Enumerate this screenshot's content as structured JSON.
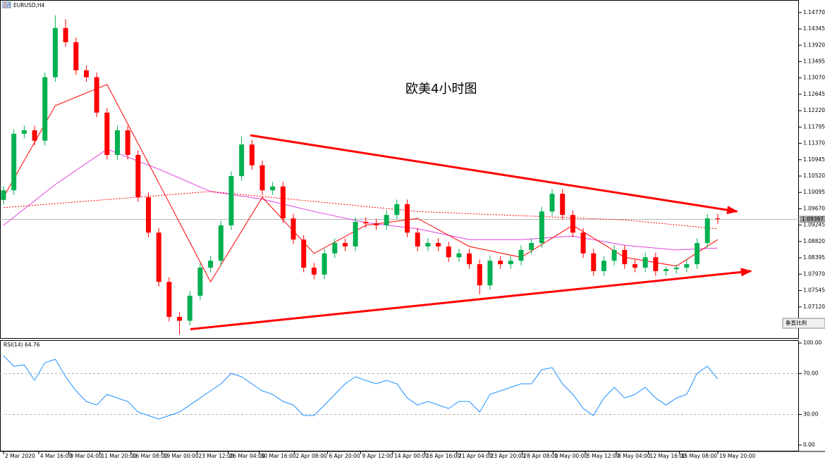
{
  "chart_data": [
    {
      "type": "candlestick",
      "title": "EURUSD,H4",
      "annotation": "欧美4小时图",
      "x": [
        0,
        1,
        2,
        3,
        4,
        5,
        6,
        7,
        8,
        9,
        10,
        11,
        12,
        13,
        14,
        15,
        16,
        17,
        18,
        19,
        20,
        21,
        22,
        23,
        24,
        25,
        26,
        27,
        28,
        29,
        30,
        31,
        32,
        33,
        34,
        35,
        36,
        37,
        38,
        39,
        40,
        41,
        42,
        43,
        44,
        45,
        46,
        47,
        48,
        49,
        50,
        51,
        52,
        53,
        54,
        55,
        56,
        57,
        58,
        59,
        60,
        61,
        62,
        63,
        64,
        65,
        66,
        67,
        68,
        69
      ],
      "open": [
        1.099,
        1.1015,
        1.1162,
        1.1171,
        1.1144,
        1.1309,
        1.1437,
        1.14,
        1.1327,
        1.1309,
        1.1217,
        1.1107,
        1.1171,
        1.1107,
        1.0997,
        1.0905,
        1.0777,
        1.0686,
        1.0676,
        1.0741,
        1.0814,
        1.0832,
        1.0924,
        1.1052,
        1.1134,
        1.108,
        1.1015,
        1.1025,
        1.0942,
        1.0887,
        1.0814,
        1.0796,
        1.0851,
        1.0878,
        1.0869,
        1.0933,
        1.0929,
        1.0924,
        1.0951,
        1.0979,
        1.0905,
        1.0869,
        1.0878,
        1.0869,
        1.0841,
        1.0851,
        1.0823,
        1.0768,
        1.0832,
        1.0823,
        1.0832,
        1.086,
        1.0878,
        1.096,
        1.1006,
        1.0951,
        1.0905,
        1.0851,
        1.0805,
        1.0832,
        1.086,
        1.0823,
        1.0814,
        1.0841,
        1.0805,
        1.081,
        1.0814,
        1.0823,
        1.0878,
        1.0942
      ],
      "high": [
        1.1027,
        1.1174,
        1.1183,
        1.1183,
        1.1321,
        1.147,
        1.146,
        1.1412,
        1.1339,
        1.1321,
        1.1229,
        1.1183,
        1.1183,
        1.1119,
        1.1009,
        1.0917,
        1.0789,
        1.0698,
        1.0753,
        1.0826,
        1.0844,
        1.0936,
        1.1064,
        1.1155,
        1.1146,
        1.1092,
        1.1037,
        1.1037,
        1.0954,
        1.0899,
        1.0826,
        1.0863,
        1.089,
        1.089,
        1.0945,
        1.0945,
        1.0941,
        1.0963,
        1.0991,
        1.0991,
        1.0917,
        1.089,
        1.089,
        1.0881,
        1.0863,
        1.0863,
        1.0835,
        1.0844,
        1.0844,
        1.0844,
        1.0872,
        1.089,
        1.0972,
        1.1018,
        1.1018,
        1.0963,
        1.0917,
        1.0863,
        1.0844,
        1.0872,
        1.0872,
        1.0835,
        1.0853,
        1.0853,
        1.0817,
        1.0822,
        1.0835,
        1.089,
        1.0954,
        1.0954
      ],
      "low": [
        1.0978,
        1.1003,
        1.115,
        1.1132,
        1.1132,
        1.1297,
        1.1388,
        1.1315,
        1.1297,
        1.1205,
        1.1095,
        1.1095,
        1.1095,
        1.0985,
        1.0893,
        1.0765,
        1.0674,
        1.064,
        1.0664,
        1.0729,
        1.0802,
        1.082,
        1.0912,
        1.104,
        1.1068,
        1.1003,
        1.1003,
        1.093,
        1.0875,
        1.0802,
        1.0784,
        1.0784,
        1.0839,
        1.0857,
        1.0857,
        1.0917,
        1.0912,
        1.0912,
        1.0939,
        1.0893,
        1.0857,
        1.0857,
        1.0857,
        1.0829,
        1.0829,
        1.0811,
        1.0745,
        1.0756,
        1.0811,
        1.0811,
        1.082,
        1.0848,
        1.0866,
        1.0948,
        1.0939,
        1.0893,
        1.0839,
        1.0793,
        1.0793,
        1.082,
        1.0811,
        1.0802,
        1.0802,
        1.0793,
        1.0793,
        1.0798,
        1.0802,
        1.0811,
        1.0866,
        1.0928
      ],
      "close": [
        1.1015,
        1.1162,
        1.1171,
        1.1144,
        1.1309,
        1.1437,
        1.14,
        1.1327,
        1.1309,
        1.1217,
        1.1107,
        1.1171,
        1.1107,
        1.0997,
        1.0905,
        1.0777,
        1.0686,
        1.0676,
        1.0741,
        1.0814,
        1.0832,
        1.0924,
        1.1052,
        1.1134,
        1.108,
        1.1015,
        1.1025,
        1.0942,
        1.0887,
        1.0814,
        1.0796,
        1.0851,
        1.0878,
        1.0869,
        1.0933,
        1.0929,
        1.0924,
        1.0951,
        1.0979,
        1.0905,
        1.0869,
        1.0878,
        1.0869,
        1.0841,
        1.0851,
        1.0823,
        1.0768,
        1.0832,
        1.0823,
        1.0832,
        1.086,
        1.0878,
        1.096,
        1.1006,
        1.0951,
        1.0905,
        1.0851,
        1.0805,
        1.0832,
        1.086,
        1.0823,
        1.0814,
        1.0841,
        1.0805,
        1.081,
        1.0814,
        1.0823,
        1.0878,
        1.0942,
        1.094
      ],
      "up_color": "#00b050",
      "down_color": "#ff0000",
      "overlays": [
        {
          "color": "#e040e0",
          "style": "solid",
          "x": [
            0,
            5,
            10,
            15,
            20,
            25,
            30,
            35,
            40,
            45,
            50,
            55,
            60,
            65,
            69
          ],
          "values": [
            1.0924,
            1.103,
            1.1122,
            1.107,
            1.1012,
            1.0992,
            1.096,
            1.0931,
            1.0915,
            1.0887,
            1.0887,
            1.0896,
            1.0872,
            1.086,
            1.0865
          ]
        },
        {
          "color": "#ff0000",
          "style": "solid",
          "x": [
            0,
            5,
            10,
            15,
            20,
            25,
            30,
            35,
            40,
            45,
            50,
            55,
            60,
            65,
            69
          ],
          "values": [
            1.0997,
            1.1235,
            1.129,
            1.1034,
            1.0777,
            1.0997,
            1.0851,
            1.0924,
            1.0942,
            1.0869,
            1.0841,
            1.0924,
            1.0841,
            1.0818,
            1.0887
          ]
        },
        {
          "color": "#ff0000",
          "style": "dotted",
          "x": [
            0,
            20,
            40,
            60,
            69
          ],
          "values": [
            1.097,
            1.1012,
            1.096,
            1.0938,
            1.0915
          ]
        }
      ],
      "trendlines": [
        {
          "color": "#ff0000",
          "x": [
            23.84,
            70.85
          ],
          "values": [
            1.1158,
            1.096
          ]
        },
        {
          "color": "#ff0000",
          "x": [
            18.05,
            72.2
          ],
          "values": [
            1.0654,
            1.0805
          ]
        }
      ],
      "last_price": {
        "value": 1.09397,
        "label": "1.09397"
      },
      "xlim": [
        -0.34,
        76.84
      ],
      "ylim": [
        1.0631,
        1.1506
      ],
      "yticks": [
        {
          "value": 1.1477,
          "label": "1.14770"
        },
        {
          "value": 1.14345,
          "label": "1.14345"
        },
        {
          "value": 1.1392,
          "label": "1.13920"
        },
        {
          "value": 1.13495,
          "label": "1.13495"
        },
        {
          "value": 1.1307,
          "label": "1.13070"
        },
        {
          "value": 1.12645,
          "label": "1.12645"
        },
        {
          "value": 1.1222,
          "label": "1.12220"
        },
        {
          "value": 1.11795,
          "label": "1.11795"
        },
        {
          "value": 1.1137,
          "label": "1.11370"
        },
        {
          "value": 1.10945,
          "label": "1.10945"
        },
        {
          "value": 1.1052,
          "label": "1.10520"
        },
        {
          "value": 1.10095,
          "label": "1.10095"
        },
        {
          "value": 1.0967,
          "label": "1.09670"
        },
        {
          "value": 1.09245,
          "label": "1.09245"
        },
        {
          "value": 1.0882,
          "label": "1.08820"
        },
        {
          "value": 1.08395,
          "label": "1.08395"
        },
        {
          "value": 1.0797,
          "label": "1.07970"
        },
        {
          "value": 1.07545,
          "label": "1.07545"
        },
        {
          "value": 1.0712,
          "label": "1.07120"
        }
      ],
      "scale_button": "垂直比例"
    },
    {
      "type": "line",
      "title": "RSI(14) 64.76",
      "color": "#1e90ff",
      "x": [
        0,
        1,
        2,
        3,
        4,
        5,
        6,
        7,
        8,
        9,
        10,
        11,
        12,
        13,
        14,
        15,
        16,
        17,
        18,
        19,
        20,
        21,
        22,
        23,
        24,
        25,
        26,
        27,
        28,
        29,
        30,
        31,
        32,
        33,
        34,
        35,
        36,
        37,
        38,
        39,
        40,
        41,
        42,
        43,
        44,
        45,
        46,
        47,
        48,
        49,
        50,
        51,
        52,
        53,
        54,
        55,
        56,
        57,
        58,
        59,
        60,
        61,
        62,
        63,
        64,
        65,
        66,
        67,
        68,
        69
      ],
      "values": [
        87.6,
        77.2,
        78.6,
        63.4,
        80.7,
        84.1,
        66.9,
        53.1,
        42.8,
        39.3,
        49.7,
        46.2,
        42.8,
        32.4,
        29.0,
        25.5,
        29.0,
        32.4,
        39.3,
        46.2,
        53.1,
        60.0,
        70.3,
        66.9,
        60.0,
        53.1,
        49.7,
        42.8,
        39.3,
        29.0,
        29.0,
        39.3,
        49.7,
        60.0,
        66.9,
        63.4,
        60.0,
        63.4,
        60.0,
        46.2,
        39.3,
        42.8,
        39.3,
        35.9,
        42.8,
        42.8,
        32.4,
        49.7,
        53.1,
        56.6,
        60.0,
        60.0,
        73.8,
        75.9,
        60.0,
        49.7,
        35.9,
        29.0,
        46.2,
        56.6,
        46.2,
        49.7,
        56.6,
        46.2,
        39.3,
        46.2,
        49.7,
        70.3,
        77.2,
        64.76
      ],
      "levels": [
        70,
        30
      ],
      "xlim": [
        -0.34,
        76.84
      ],
      "ylim": [
        -5.5,
        102.8
      ],
      "yticks": [
        {
          "value": 100,
          "label": "100.00"
        },
        {
          "value": 70,
          "label": "70.00"
        },
        {
          "value": 30,
          "label": "30.00"
        },
        {
          "value": 0,
          "label": "0.00"
        }
      ],
      "xticks": [
        {
          "value": 0,
          "label": "2 Mar 2020"
        },
        {
          "value": 3.4,
          "label": "4 Mar 16:00"
        },
        {
          "value": 6.3,
          "label": "9 Mar 04:00"
        },
        {
          "value": 9.3,
          "label": "11 Mar 20:00"
        },
        {
          "value": 12.3,
          "label": "16 Mar 08:00"
        },
        {
          "value": 15.3,
          "label": "19 Mar 00:00"
        },
        {
          "value": 18.7,
          "label": "23 Mar 12:00"
        },
        {
          "value": 21.7,
          "label": "26 Mar 04:00"
        },
        {
          "value": 24.7,
          "label": "30 Mar 16:00"
        },
        {
          "value": 28.1,
          "label": "2 Apr 08:00"
        },
        {
          "value": 31.3,
          "label": "6 Apr 20:00"
        },
        {
          "value": 34.5,
          "label": "9 Apr 12:00"
        },
        {
          "value": 37.6,
          "label": "14 Apr 00:00"
        },
        {
          "value": 40.7,
          "label": "16 Apr 16:00"
        },
        {
          "value": 43.8,
          "label": "21 Apr 04:00"
        },
        {
          "value": 46.9,
          "label": "23 Apr 20:00"
        },
        {
          "value": 50.1,
          "label": "28 Apr 08:00"
        },
        {
          "value": 53.1,
          "label": "1 May 00:00"
        },
        {
          "value": 56.2,
          "label": "5 May 12:00"
        },
        {
          "value": 59.2,
          "label": "8 May 04:00"
        },
        {
          "value": 62.3,
          "label": "12 May 16:00"
        },
        {
          "value": 65.3,
          "label": "15 May 08:00"
        },
        {
          "value": 69,
          "label": "19 May 20:00"
        }
      ]
    }
  ]
}
